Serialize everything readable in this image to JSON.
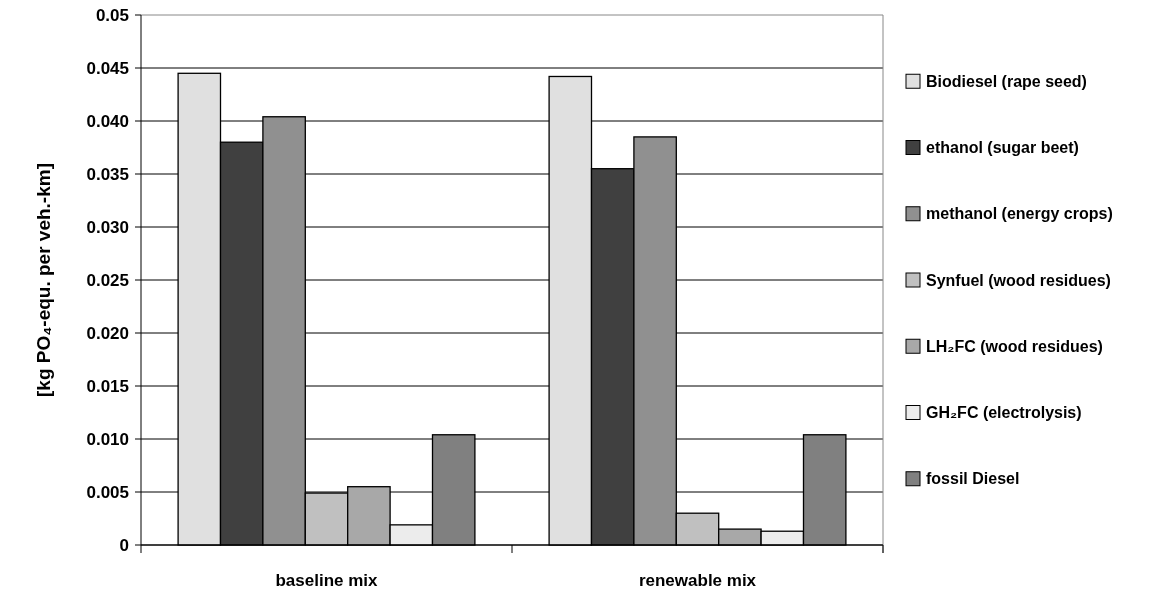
{
  "chart_data": {
    "type": "bar",
    "ylabel": "[kg PO₄-equ. per veh.-km]",
    "categories": [
      "baseline mix",
      "renewable mix"
    ],
    "series": [
      {
        "name": "Biodiesel (rape seed)",
        "color": "#e0e0e0",
        "values": [
          0.0445,
          0.0442
        ]
      },
      {
        "name": "ethanol (sugar beet)",
        "color": "#404040",
        "values": [
          0.038,
          0.0355
        ]
      },
      {
        "name": "methanol (energy crops)",
        "color": "#909090",
        "values": [
          0.0404,
          0.0385
        ]
      },
      {
        "name": "Synfuel (wood residues)",
        "color": "#c0c0c0",
        "values": [
          0.0049,
          0.003
        ]
      },
      {
        "name": "LH₂FC (wood residues)",
        "color": "#a8a8a8",
        "values": [
          0.0055,
          0.0015
        ]
      },
      {
        "name": "GH₂FC (electrolysis)",
        "color": "#ececec",
        "values": [
          0.0019,
          0.0013
        ]
      },
      {
        "name": "fossil Diesel",
        "color": "#808080",
        "values": [
          0.0104,
          0.0104
        ]
      }
    ],
    "ylim": [
      0,
      0.05
    ],
    "yticks": [
      {
        "value": 0,
        "label": "0"
      },
      0.005,
      {
        "value": 0.01,
        "label": "0.010"
      },
      0.015,
      {
        "value": 0.02,
        "label": "0.020"
      },
      0.025,
      {
        "value": 0.03,
        "label": "0.030"
      },
      0.035,
      {
        "value": 0.04,
        "label": "0.040"
      },
      0.045,
      0.05
    ],
    "grid": "y",
    "legend": "right"
  }
}
